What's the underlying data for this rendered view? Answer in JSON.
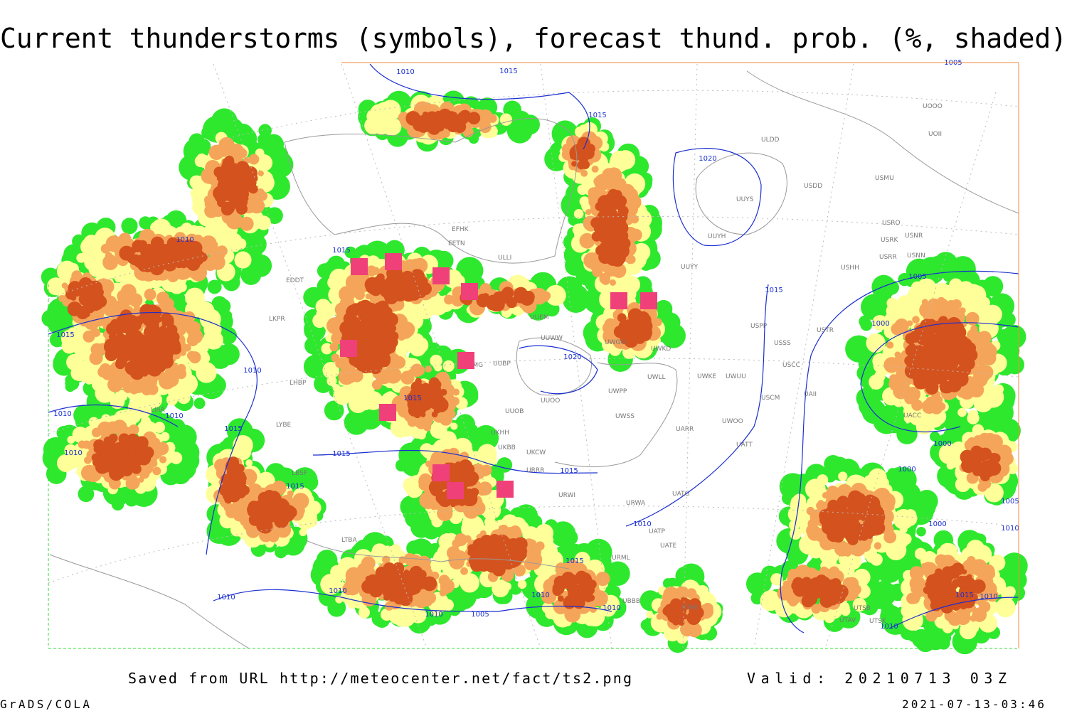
{
  "title": "Current thunderstorms (symbols), forecast thund. prob. (%, shaded)",
  "isobar_labels": [
    "1010",
    "1015",
    "1015",
    "1020",
    "1010",
    "1015",
    "1015",
    "1010",
    "1010",
    "1010",
    "1015",
    "1010",
    "1015",
    "1015",
    "1015",
    "1020",
    "1015",
    "1015",
    "1005",
    "1000",
    "1000",
    "1000",
    "1000",
    "1010",
    "1015",
    "1010",
    "1010",
    "1010",
    "1010",
    "1010",
    "1005",
    "1015",
    "1010",
    "1010",
    "1005",
    "1005",
    "1010"
  ],
  "station_labels": [
    "EFHK",
    "EETN",
    "ULLI",
    "UUEM",
    "UUWW",
    "UUBP",
    "UUOB",
    "UUOO",
    "UKHH",
    "UKCW",
    "URRR",
    "URWI",
    "URWA",
    "UATG",
    "UATE",
    "UATP",
    "URML",
    "UBBB",
    "UTAK",
    "UTAV",
    "UTSB",
    "UTSK",
    "UWPP",
    "UWSS",
    "UWKD",
    "UWLL",
    "UWUU",
    "USPP",
    "USSS",
    "USCC",
    "USCM",
    "UWOO",
    "UATT",
    "USTR",
    "USHH",
    "USRR",
    "USNN",
    "USRK",
    "USNR",
    "USRO",
    "USMU",
    "USDD",
    "ULDD",
    "UUYS",
    "UUYH",
    "UUYY",
    "UOOO",
    "UOII",
    "UAII",
    "UACC",
    "LKPR",
    "EDDT",
    "LHBP",
    "LYBE",
    "LBSF",
    "LTBA",
    "LIRA",
    "UMMG",
    "UKBB",
    "UWGG",
    "UWKE",
    "UARR"
  ],
  "footer": {
    "source": "Saved from URL http://meteocenter.net/fact/ts2.png",
    "valid": "Valid: 20210713 03Z",
    "software": "GrADS/COLA",
    "timestamp": "2021-07-13-03:46"
  }
}
